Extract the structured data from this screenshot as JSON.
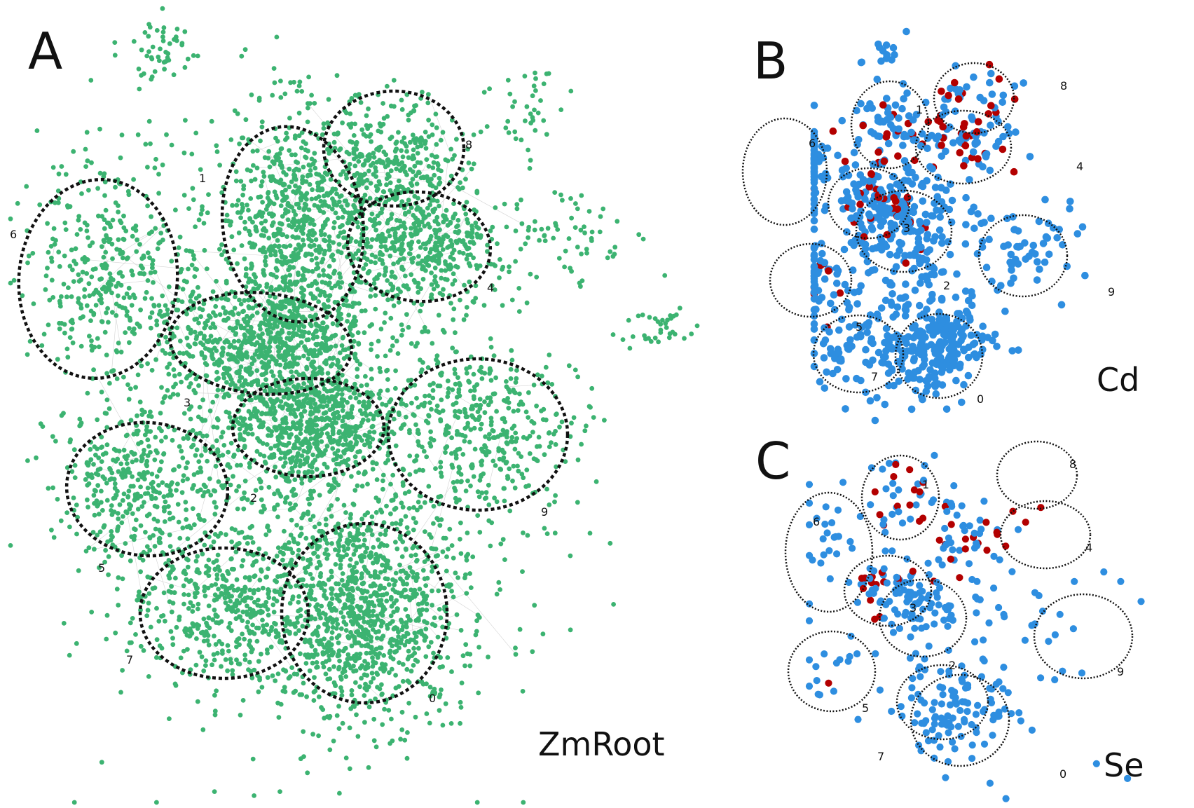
{
  "colors": {
    "background": "#ffffff",
    "node_green": "#3cb371",
    "node_blue": "#2e8ee0",
    "node_red": "#b30000",
    "edge": "#b8b8b8",
    "ellipse": "#111111"
  },
  "panels": {
    "A": {
      "letter": "A",
      "name": "ZmRoot"
    },
    "B": {
      "letter": "B",
      "name": "Cd"
    },
    "C": {
      "letter": "C",
      "name": "Se"
    }
  },
  "module_labels": [
    "0",
    "1",
    "2",
    "3",
    "4",
    "5",
    "6",
    "7",
    "8",
    "9"
  ]
}
